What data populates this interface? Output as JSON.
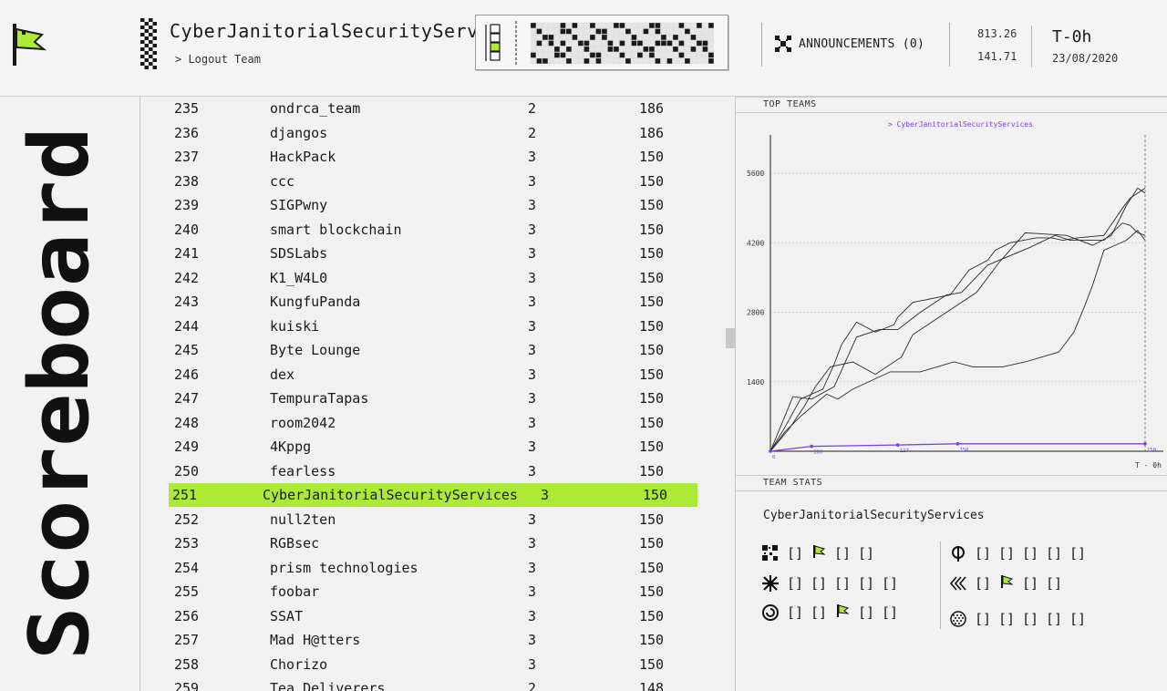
{
  "header": {
    "team_name": "CyberJanitorialSecurityServ",
    "logout_label": "> Logout Team",
    "announcements_label": "ANNOUNCEMENTS (0)",
    "value_top": "813.26",
    "value_bottom": "141.71",
    "timer": "T-0h",
    "date": "23/08/2020"
  },
  "sidebar": {
    "title": "Scoreboard"
  },
  "scoreboard": {
    "rows": [
      {
        "rank": "235",
        "name": "ondrca_team",
        "solves": "2",
        "score": "186"
      },
      {
        "rank": "236",
        "name": "djangos",
        "solves": "2",
        "score": "186"
      },
      {
        "rank": "237",
        "name": "HackPack",
        "solves": "3",
        "score": "150"
      },
      {
        "rank": "238",
        "name": "ccc",
        "solves": "3",
        "score": "150"
      },
      {
        "rank": "239",
        "name": "SIGPwny",
        "solves": "3",
        "score": "150"
      },
      {
        "rank": "240",
        "name": "smart blockchain",
        "solves": "3",
        "score": "150"
      },
      {
        "rank": "241",
        "name": "SDSLabs",
        "solves": "3",
        "score": "150"
      },
      {
        "rank": "242",
        "name": "K1_W4L0",
        "solves": "3",
        "score": "150"
      },
      {
        "rank": "243",
        "name": "KungfuPanda",
        "solves": "3",
        "score": "150"
      },
      {
        "rank": "244",
        "name": "kuiski",
        "solves": "3",
        "score": "150"
      },
      {
        "rank": "245",
        "name": "Byte Lounge",
        "solves": "3",
        "score": "150"
      },
      {
        "rank": "246",
        "name": "dex",
        "solves": "3",
        "score": "150"
      },
      {
        "rank": "247",
        "name": "TempuraTapas",
        "solves": "3",
        "score": "150"
      },
      {
        "rank": "248",
        "name": "room2042",
        "solves": "3",
        "score": "150"
      },
      {
        "rank": "249",
        "name": "4Kppg",
        "solves": "3",
        "score": "150"
      },
      {
        "rank": "250",
        "name": "fearless",
        "solves": "3",
        "score": "150"
      },
      {
        "rank": "251",
        "name": "CyberJanitorialSecurityServices",
        "solves": "3",
        "score": "150",
        "highlight": true
      },
      {
        "rank": "252",
        "name": "null2ten",
        "solves": "3",
        "score": "150"
      },
      {
        "rank": "253",
        "name": "RGBsec",
        "solves": "3",
        "score": "150"
      },
      {
        "rank": "254",
        "name": "prism technologies",
        "solves": "3",
        "score": "150"
      },
      {
        "rank": "255",
        "name": "foobar",
        "solves": "3",
        "score": "150"
      },
      {
        "rank": "256",
        "name": "SSAT",
        "solves": "3",
        "score": "150"
      },
      {
        "rank": "257",
        "name": "Mad H@tters",
        "solves": "3",
        "score": "150"
      },
      {
        "rank": "258",
        "name": "Chorizo",
        "solves": "3",
        "score": "150"
      },
      {
        "rank": "259",
        "name": "Tea Deliverers",
        "solves": "2",
        "score": "148"
      }
    ]
  },
  "top_teams": {
    "title": "TOP TEAMS",
    "legend": "> CyberJanitorialSecurityServices",
    "y_ticks": [
      "5600",
      "4200",
      "2800",
      "1400"
    ],
    "x_end_label": "T - 0h",
    "highlight_color": "#7b3fe4",
    "accent_color": "#adea37"
  },
  "chart_data": {
    "type": "line",
    "title": "TOP TEAMS",
    "xlabel": "",
    "ylabel": "",
    "ylim": [
      0,
      6300
    ],
    "xlim": [
      0,
      100
    ],
    "x_end_label": "T - 0h",
    "series": [
      {
        "name": "CyberJanitorialSecurityServices",
        "x": [
          0,
          11,
          34,
          50,
          100
        ],
        "y": [
          0,
          100,
          127,
          150,
          150
        ],
        "labels": [
          "0",
          "100",
          "127",
          "150",
          "150"
        ]
      },
      {
        "x": [
          0,
          4,
          8,
          14,
          17,
          19,
          23,
          28,
          33,
          34,
          38,
          48,
          53,
          58,
          60,
          64,
          71,
          75,
          78,
          82,
          89,
          94,
          96,
          98,
          100
        ],
        "y": [
          0,
          500,
          1050,
          1250,
          1750,
          2150,
          2600,
          2400,
          2550,
          2700,
          3000,
          3150,
          3650,
          3850,
          4050,
          4200,
          4300,
          4300,
          4250,
          4300,
          4350,
          4900,
          5100,
          5200,
          5300
        ]
      },
      {
        "x": [
          0,
          6,
          11,
          17,
          23,
          29,
          34,
          40,
          47,
          51,
          58,
          69,
          76,
          80,
          89,
          94,
          96,
          98,
          100
        ],
        "y": [
          0,
          1100,
          1050,
          1300,
          2300,
          2450,
          2450,
          2800,
          3150,
          3200,
          3750,
          4100,
          4350,
          4250,
          4250,
          4600,
          4550,
          4400,
          4350
        ]
      },
      {
        "x": [
          0,
          5,
          9,
          12,
          16,
          22,
          28,
          35,
          38,
          46,
          55,
          61,
          68,
          79,
          86,
          91,
          95,
          98,
          100
        ],
        "y": [
          0,
          450,
          900,
          1300,
          1700,
          1800,
          1550,
          1900,
          2350,
          2750,
          3200,
          3800,
          4400,
          4350,
          4150,
          4350,
          4950,
          5300,
          5200
        ]
      },
      {
        "x": [
          0,
          4,
          8,
          15,
          18,
          22,
          32,
          40,
          49,
          54,
          62,
          68,
          77,
          81,
          84,
          86,
          89,
          92,
          95,
          98,
          100
        ],
        "y": [
          0,
          400,
          700,
          1150,
          1050,
          1250,
          1600,
          1600,
          1800,
          1700,
          1700,
          1800,
          2000,
          2400,
          2950,
          3350,
          4050,
          4150,
          4250,
          4450,
          4250
        ]
      }
    ]
  },
  "team_stats": {
    "title": "TEAM STATS",
    "team_name": "CyberJanitorialSecurityServices",
    "categories": [
      {
        "icon": "qr-category-icon",
        "cells": [
          "[]",
          "flag",
          "[]",
          "[]"
        ]
      },
      {
        "icon": "asterisk-category-icon",
        "cells": [
          "[]",
          "[]",
          "[]",
          "[]",
          "[]"
        ]
      },
      {
        "icon": "spiral-category-icon",
        "cells": [
          "[]",
          "[]",
          "flag",
          "[]",
          "[]"
        ]
      },
      {
        "icon": "phi-category-icon",
        "cells": [
          "[]",
          "[]",
          "[]",
          "[]",
          "[]"
        ]
      },
      {
        "icon": "chevrons-category-icon",
        "cells": [
          "[]",
          "flag",
          "[]",
          "[]"
        ]
      },
      {
        "icon": "dither-category-icon",
        "cells": [
          "[]",
          "[]",
          "[]",
          "[]",
          "[]"
        ]
      }
    ]
  }
}
